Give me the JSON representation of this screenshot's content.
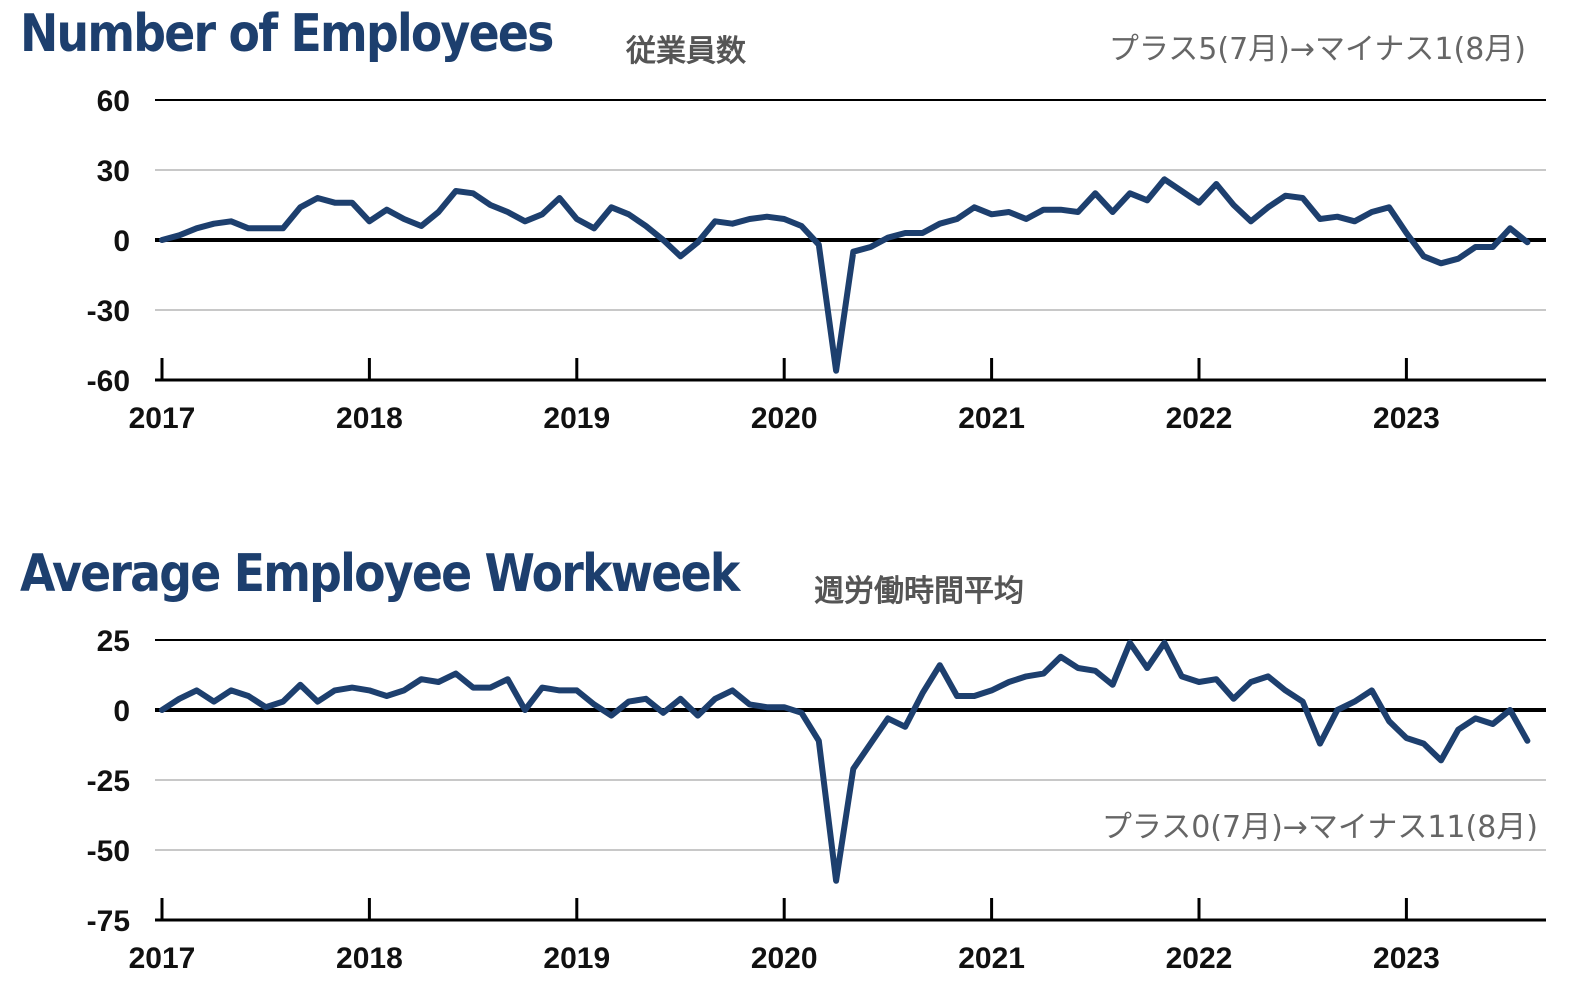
{
  "colors": {
    "line": "#1d3f6e",
    "title": "#1d3f6e",
    "grid": "#c8c8c8",
    "zero": "#000000"
  },
  "chart_data": [
    {
      "type": "line",
      "title": "Number of Employees",
      "subtitle": "従業員数",
      "annotation": "プラス5(7月)→マイナス1(8月)",
      "xlabel": "",
      "ylabel": "",
      "ylim": [
        -60,
        60
      ],
      "yticks": [
        60,
        30,
        0,
        -30,
        -60
      ],
      "xtick_labels": [
        "2017",
        "2018",
        "2019",
        "2020",
        "2021",
        "2022",
        "2023"
      ],
      "grid": true,
      "series": [
        {
          "start": "2017-01",
          "values": [
            0,
            2,
            5,
            7,
            8,
            5,
            5,
            5,
            14,
            18,
            16,
            16,
            8,
            13,
            9,
            6,
            12,
            21,
            20,
            15,
            12,
            8,
            11,
            18,
            9,
            5,
            14,
            11,
            6,
            0,
            -7,
            -1,
            8,
            7,
            9,
            10,
            9,
            6,
            -2,
            -56,
            -5,
            -3,
            1,
            3,
            3,
            7,
            9,
            14,
            11,
            12,
            9,
            13,
            13,
            12,
            20,
            12,
            20,
            17,
            26,
            21,
            16,
            24,
            15,
            8,
            14,
            19,
            18,
            9,
            10,
            8,
            12,
            14,
            3,
            -7,
            -10,
            -8,
            -3,
            -3,
            5,
            -1
          ]
        }
      ]
    },
    {
      "type": "line",
      "title": "Average Employee Workweek",
      "subtitle": "週労働時間平均",
      "annotation": "プラス0(7月)→マイナス11(8月)",
      "xlabel": "",
      "ylabel": "",
      "ylim": [
        -75,
        25
      ],
      "yticks": [
        25,
        0,
        -25,
        -50,
        -75
      ],
      "xtick_labels": [
        "2017",
        "2018",
        "2019",
        "2020",
        "2021",
        "2022",
        "2023"
      ],
      "grid": true,
      "series": [
        {
          "start": "2017-01",
          "values": [
            0,
            4,
            7,
            3,
            7,
            5,
            1,
            3,
            9,
            3,
            7,
            8,
            7,
            5,
            7,
            11,
            10,
            13,
            8,
            8,
            11,
            0,
            8,
            7,
            7,
            2,
            -2,
            3,
            4,
            -1,
            4,
            -2,
            4,
            7,
            2,
            1,
            1,
            -1,
            -11,
            -61,
            -21,
            -12,
            -3,
            -6,
            6,
            16,
            5,
            5,
            7,
            10,
            12,
            13,
            19,
            15,
            14,
            9,
            24,
            15,
            24,
            12,
            10,
            11,
            4,
            10,
            12,
            7,
            3,
            -12,
            0,
            3,
            7,
            -4,
            -10,
            -12,
            -18,
            -7,
            -3,
            -5,
            0,
            -11
          ]
        }
      ]
    }
  ]
}
